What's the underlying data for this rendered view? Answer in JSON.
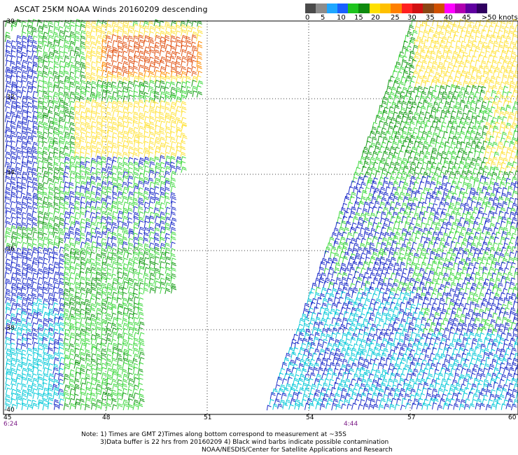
{
  "title": "ASCAT 25KM NOAA Winds 20160209 descending",
  "colorbar": {
    "colors": [
      "#4a4a4a",
      "#8c8c8c",
      "#1fa7ff",
      "#1a60ff",
      "#1ec41e",
      "#0e8a0e",
      "#ffe000",
      "#ffc000",
      "#ff8000",
      "#ff2020",
      "#d01010",
      "#8b4513",
      "#d05000",
      "#ff00ff",
      "#b000b0",
      "#6000a0",
      "#300060"
    ],
    "labels": [
      "0",
      "5",
      "10",
      "15",
      "20",
      "25",
      "30",
      "35",
      "40",
      "45",
      ">50 knots"
    ]
  },
  "axes": {
    "x_ticks": [
      "45",
      "48",
      "51",
      "54",
      "57",
      "60"
    ],
    "y_ticks": [
      "-30",
      "-32",
      "-34",
      "-36",
      "-38",
      "-40"
    ]
  },
  "pass_times": [
    "6:24",
    "4:44"
  ],
  "notes": [
    "Note: 1) Times are GMT 2)Times along bottom correspond to measurement at ~35S",
    "3)Data buffer is 22 hrs from 20160209 4) Black wind barbs indicate possible contamination",
    "NOAA/NESDIS/Center for Satellite Applications and Research"
  ],
  "wind_field_palette": {
    "cyan": "#00c8d8",
    "blue": "#1828c8",
    "light_green": "#3cd83c",
    "dark_green": "#129a12",
    "yellow": "#ffe23a",
    "orange": "#ff8c00",
    "red_orange": "#e05010"
  }
}
